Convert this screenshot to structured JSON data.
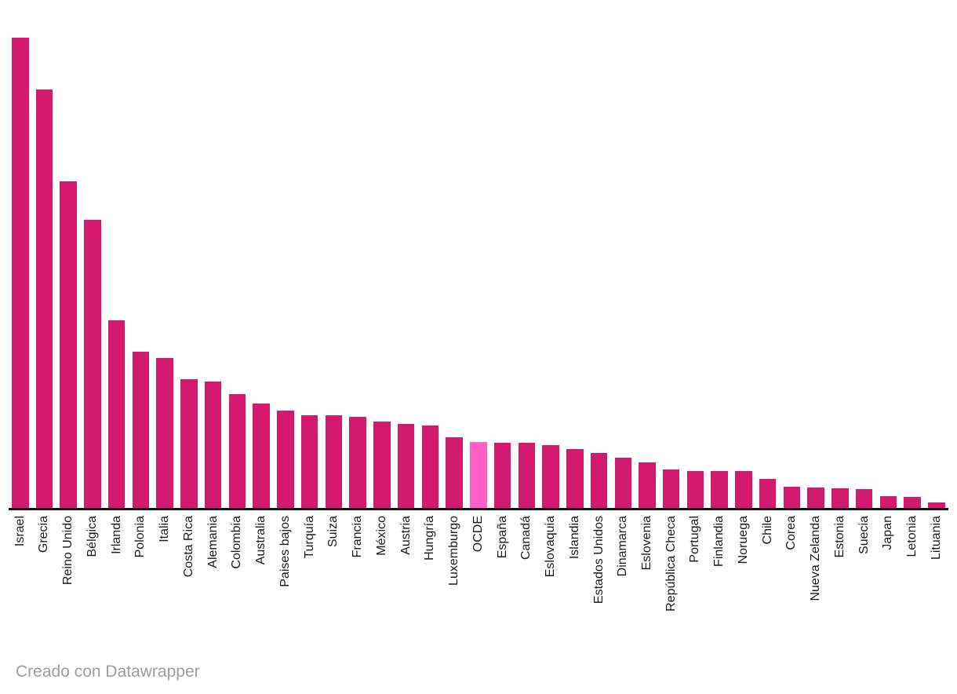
{
  "chart_data": {
    "type": "bar",
    "title": "",
    "categories": [
      "Israel",
      "Grecia",
      "Reino Unido",
      "Bélgica",
      "Irlanda",
      "Polonia",
      "Italia",
      "Costa Rica",
      "Alemania",
      "Colombia",
      "Australia",
      "Paises bajos",
      "Turquía",
      "Suiza",
      "Francia",
      "México",
      "Austria",
      "Hungría",
      "Luxemburgo",
      "OCDE",
      "España",
      "Canadá",
      "Eslovaquia",
      "Islandia",
      "Estados Unidos",
      "Dinamarca",
      "Eslovenia",
      "República Checa",
      "Portugal",
      "Finlandia",
      "Noruega",
      "Chile",
      "Corea",
      "Nueva Zelanda",
      "Estonia",
      "Suecia",
      "Japan",
      "Letonia",
      "Lituania"
    ],
    "values": [
      599,
      533,
      416,
      367,
      239,
      199,
      191,
      164,
      161,
      145,
      133,
      124,
      118,
      118,
      116,
      110,
      107,
      105,
      90,
      84,
      83,
      83,
      80,
      75,
      70,
      64,
      58,
      49,
      47,
      47,
      47,
      37,
      27,
      26,
      25,
      24,
      15,
      14,
      7
    ],
    "value_axis_visible": false,
    "grid": "off",
    "legend": "none",
    "sort_order": "descending",
    "highlight_category": "OCDE",
    "bar_color": "#d41a6e",
    "highlight_color": "#ff60c5",
    "baseline_color": "#131313"
  },
  "footer": {
    "attribution": "Creado con Datawrapper"
  }
}
